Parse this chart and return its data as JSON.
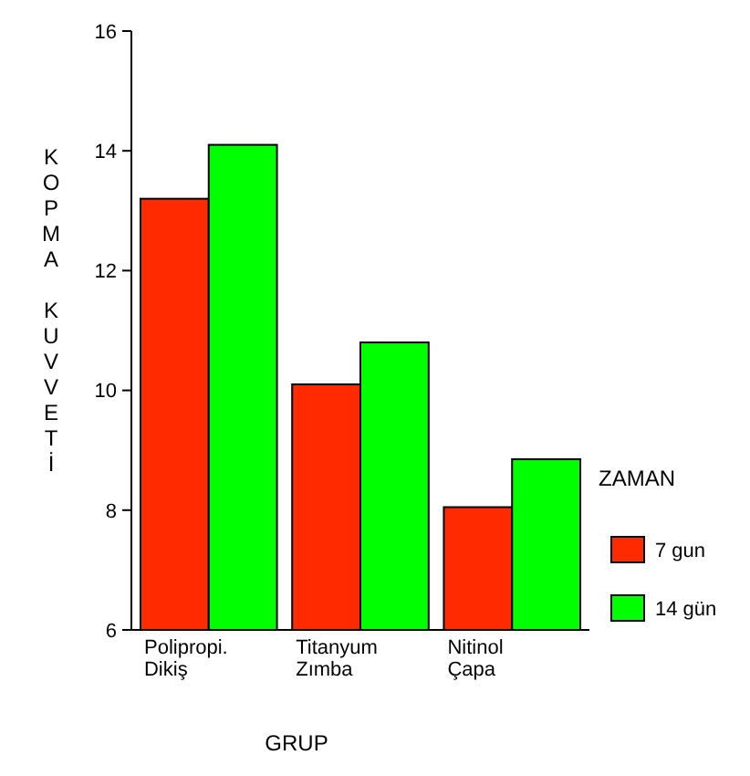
{
  "chart_data": {
    "type": "bar",
    "xlabel": "GRUP",
    "ylabel": "KOPMA KUVVETİ",
    "legend_title": "ZAMAN",
    "legend": "right",
    "categories": [
      "Polipropi.\nDikiş",
      "Titanyum\nZımba",
      "Nitinol\nÇapa"
    ],
    "series": [
      {
        "name": "7 gun",
        "color": "#ff2a00",
        "values": [
          13.2,
          10.1,
          8.05
        ]
      },
      {
        "name": "14 gün",
        "color": "#00ff00",
        "values": [
          14.1,
          10.8,
          8.85
        ]
      }
    ],
    "ylim": [
      6,
      16
    ],
    "yticks": [
      6,
      8,
      10,
      12,
      14,
      16
    ]
  }
}
